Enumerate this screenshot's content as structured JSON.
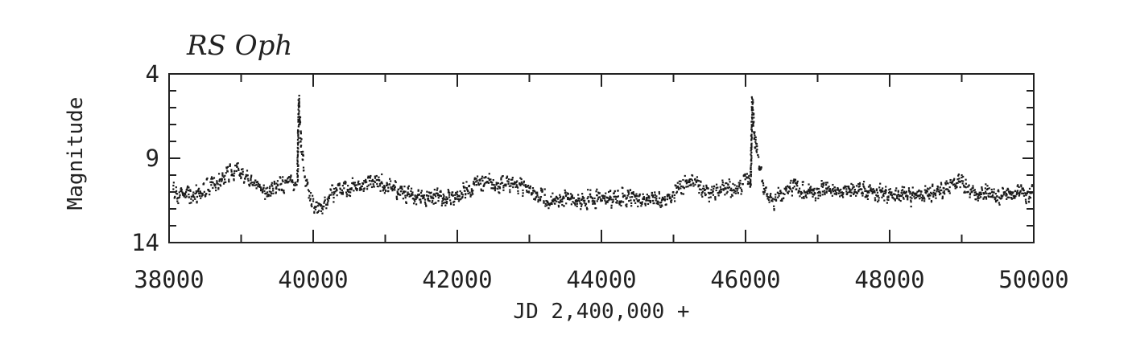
{
  "chart_data": {
    "type": "scatter",
    "title": "RS Oph",
    "xlabel": "JD 2,400,000 +",
    "ylabel": "Magnitude",
    "xlim": [
      38000,
      50000
    ],
    "ylim": [
      14,
      4
    ],
    "y_inverted": true,
    "grid": false,
    "x_ticks": [
      38000,
      40000,
      42000,
      44000,
      46000,
      48000,
      50000
    ],
    "y_ticks": [
      4,
      9,
      14
    ],
    "marker_color": "#1a1a1a",
    "light_curve": [
      [
        38050,
        10.9
      ],
      [
        38150,
        11.2
      ],
      [
        38300,
        11.1
      ],
      [
        38450,
        11.0
      ],
      [
        38550,
        10.6
      ],
      [
        38650,
        10.3
      ],
      [
        38750,
        10.0
      ],
      [
        38850,
        9.8
      ],
      [
        38950,
        9.8
      ],
      [
        39050,
        10.0
      ],
      [
        39150,
        10.3
      ],
      [
        39250,
        10.6
      ],
      [
        39350,
        10.9
      ],
      [
        39450,
        10.7
      ],
      [
        39550,
        10.5
      ],
      [
        39650,
        10.3
      ],
      [
        39720,
        10.5
      ],
      [
        39770,
        10.3
      ],
      [
        39790,
        5.4
      ],
      [
        39800,
        6.5
      ],
      [
        39810,
        7.4
      ],
      [
        39830,
        8.4
      ],
      [
        39860,
        9.4
      ],
      [
        39900,
        10.4
      ],
      [
        39950,
        11.3
      ],
      [
        40000,
        11.7
      ],
      [
        40050,
        11.9
      ],
      [
        40100,
        11.8
      ],
      [
        40150,
        11.5
      ],
      [
        40200,
        11.1
      ],
      [
        40300,
        10.9
      ],
      [
        40400,
        10.8
      ],
      [
        40500,
        10.7
      ],
      [
        40600,
        10.5
      ],
      [
        40700,
        10.4
      ],
      [
        40800,
        10.3
      ],
      [
        40900,
        10.4
      ],
      [
        41000,
        10.6
      ],
      [
        41100,
        10.8
      ],
      [
        41250,
        11.0
      ],
      [
        41400,
        11.1
      ],
      [
        41550,
        11.2
      ],
      [
        41700,
        11.2
      ],
      [
        41850,
        11.3
      ],
      [
        42000,
        11.1
      ],
      [
        42150,
        10.8
      ],
      [
        42250,
        10.6
      ],
      [
        42350,
        10.5
      ],
      [
        42450,
        10.4
      ],
      [
        42550,
        10.5
      ],
      [
        42650,
        10.4
      ],
      [
        42750,
        10.5
      ],
      [
        42850,
        10.6
      ],
      [
        42950,
        10.7
      ],
      [
        43050,
        10.8
      ],
      [
        43150,
        11.1
      ],
      [
        43250,
        11.4
      ],
      [
        43350,
        11.5
      ],
      [
        43500,
        11.4
      ],
      [
        43650,
        11.5
      ],
      [
        43800,
        11.4
      ],
      [
        43950,
        11.3
      ],
      [
        44100,
        11.4
      ],
      [
        44250,
        11.3
      ],
      [
        44400,
        11.2
      ],
      [
        44550,
        11.4
      ],
      [
        44700,
        11.5
      ],
      [
        44850,
        11.5
      ],
      [
        44950,
        11.3
      ],
      [
        45050,
        10.9
      ],
      [
        45150,
        10.5
      ],
      [
        45250,
        10.3
      ],
      [
        45350,
        10.6
      ],
      [
        45450,
        10.9
      ],
      [
        45550,
        11.0
      ],
      [
        45650,
        10.8
      ],
      [
        45750,
        10.7
      ],
      [
        45850,
        10.8
      ],
      [
        45950,
        10.5
      ],
      [
        46020,
        10.0
      ],
      [
        46060,
        10.6
      ],
      [
        46080,
        5.6
      ],
      [
        46090,
        6.2
      ],
      [
        46100,
        6.9
      ],
      [
        46120,
        7.8
      ],
      [
        46150,
        8.7
      ],
      [
        46190,
        9.7
      ],
      [
        46230,
        10.5
      ],
      [
        46280,
        11.1
      ],
      [
        46330,
        11.4
      ],
      [
        46380,
        11.5
      ],
      [
        46450,
        11.2
      ],
      [
        46550,
        10.9
      ],
      [
        46650,
        10.7
      ],
      [
        46800,
        10.8
      ],
      [
        46950,
        10.9
      ],
      [
        47100,
        10.8
      ],
      [
        47250,
        10.9
      ],
      [
        47400,
        10.9
      ],
      [
        47550,
        10.8
      ],
      [
        47700,
        10.9
      ],
      [
        47850,
        11.0
      ],
      [
        48000,
        11.1
      ],
      [
        48150,
        11.2
      ],
      [
        48300,
        11.2
      ],
      [
        48450,
        11.1
      ],
      [
        48600,
        11.0
      ],
      [
        48750,
        10.8
      ],
      [
        48850,
        10.5
      ],
      [
        48950,
        10.4
      ],
      [
        49050,
        10.6
      ],
      [
        49150,
        10.9
      ],
      [
        49300,
        11.0
      ],
      [
        49450,
        11.1
      ],
      [
        49600,
        11.2
      ],
      [
        49750,
        11.0
      ],
      [
        49900,
        11.1
      ],
      [
        49980,
        11.0
      ]
    ]
  }
}
